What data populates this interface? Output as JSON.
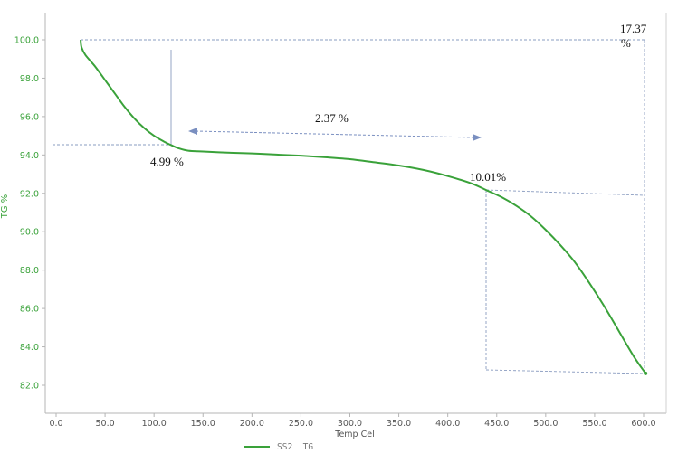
{
  "chart_data": {
    "type": "line",
    "xlabel": "Temp Cel",
    "ylabel": "TG %",
    "xlim": [
      -3,
      625
    ],
    "ylim": [
      81.4,
      102.0
    ],
    "xticks": [
      "0.0",
      "50.0",
      "100.0",
      "150.0",
      "200.0",
      "250.0",
      "300.0",
      "350.0",
      "400.0",
      "450.0",
      "500.0",
      "550.0",
      "600.0"
    ],
    "yticks": [
      "82.0",
      "84.0",
      "86.0",
      "88.0",
      "90.0",
      "92.0",
      "94.0",
      "96.0",
      "98.0",
      "100.0"
    ],
    "series": [
      {
        "name": "SS2  TG",
        "color": "#3aa23a",
        "x": [
          25,
          26,
          30,
          40,
          50,
          60,
          70,
          80,
          90,
          100,
          110,
          118,
          125,
          135,
          150,
          175,
          200,
          225,
          250,
          275,
          300,
          325,
          350,
          375,
          400,
          425,
          440,
          455,
          470,
          485,
          500,
          515,
          530,
          545,
          560,
          575,
          590,
          602
        ],
        "y": [
          100.0,
          99.6,
          99.2,
          98.6,
          97.9,
          97.2,
          96.5,
          95.9,
          95.4,
          95.0,
          94.7,
          94.5,
          94.35,
          94.22,
          94.18,
          94.12,
          94.08,
          94.02,
          93.96,
          93.88,
          93.78,
          93.62,
          93.45,
          93.22,
          92.9,
          92.5,
          92.15,
          91.8,
          91.35,
          90.8,
          90.1,
          89.3,
          88.4,
          87.3,
          86.1,
          84.8,
          83.5,
          82.62
        ]
      }
    ],
    "annotations": [
      "4.99 %",
      "2.37 %",
      "10.01%",
      "17.37",
      "%"
    ],
    "grid": false,
    "legend_position": "bottom-left"
  },
  "colors": {
    "series": "#3aa23a",
    "guides": "#8a9cc0",
    "arrow": "#7a8fc0"
  }
}
